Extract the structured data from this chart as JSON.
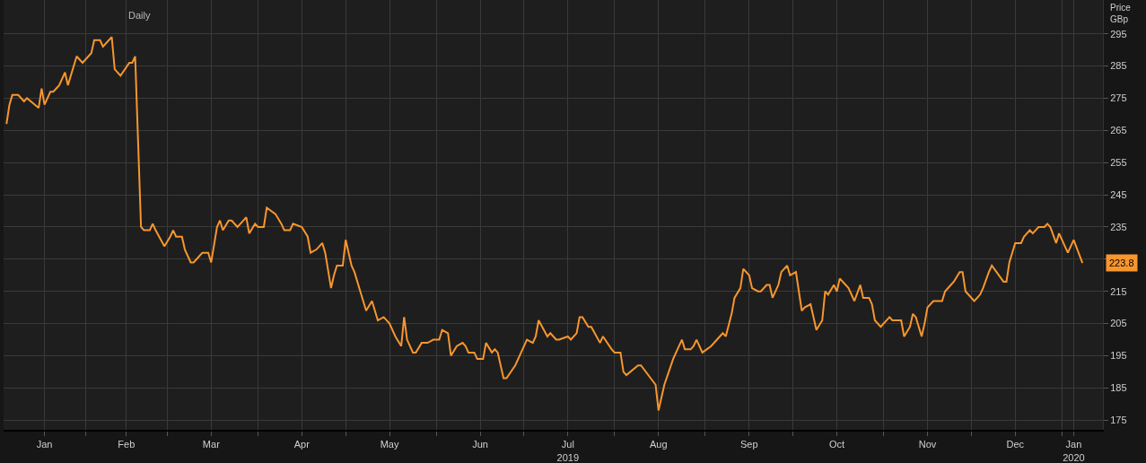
{
  "chart_data": {
    "type": "line",
    "ylabel": "Price\nGBp",
    "color": "#f7962e",
    "line_style": "solid",
    "grid": true,
    "x": [
      "2019-01-05",
      "2019-01-06",
      "2019-01-07",
      "2019-01-09",
      "2019-01-11",
      "2019-01-12",
      "2019-01-16",
      "2019-01-17",
      "2019-01-18",
      "2019-01-20",
      "2019-01-21",
      "2019-01-23",
      "2019-01-25",
      "2019-01-26",
      "2019-01-29",
      "2019-01-31",
      "2019-02-03",
      "2019-02-04",
      "2019-02-06",
      "2019-02-07",
      "2019-02-10",
      "2019-02-11",
      "2019-02-13",
      "2019-02-16",
      "2019-02-17",
      "2019-02-18",
      "2019-02-20",
      "2019-02-21",
      "2019-02-23",
      "2019-02-24",
      "2019-02-25",
      "2019-02-28",
      "2019-03-02",
      "2019-03-03",
      "2019-03-04",
      "2019-03-06",
      "2019-03-07",
      "2019-03-09",
      "2019-03-10",
      "2019-03-12",
      "2019-03-13",
      "2019-03-15",
      "2019-03-16",
      "2019-03-18",
      "2019-03-19",
      "2019-03-20",
      "2019-03-22",
      "2019-03-23",
      "2019-03-25",
      "2019-03-26",
      "2019-03-28",
      "2019-03-29",
      "2019-03-31",
      "2019-04-01",
      "2019-04-03",
      "2019-04-04",
      "2019-04-07",
      "2019-04-09",
      "2019-04-10",
      "2019-04-12",
      "2019-04-13",
      "2019-04-16",
      "2019-04-18",
      "2019-04-19",
      "2019-04-21",
      "2019-04-23",
      "2019-04-24",
      "2019-04-26",
      "2019-04-27",
      "2019-04-28",
      "2019-04-30",
      "2019-05-01",
      "2019-05-03",
      "2019-05-04",
      "2019-05-06",
      "2019-05-08",
      "2019-05-10",
      "2019-05-12",
      "2019-05-14",
      "2019-05-16",
      "2019-05-18",
      "2019-05-20",
      "2019-05-21",
      "2019-05-22",
      "2019-05-24",
      "2019-05-25",
      "2019-05-27",
      "2019-05-29",
      "2019-05-31",
      "2019-06-02",
      "2019-06-03",
      "2019-06-05",
      "2019-06-06",
      "2019-06-08",
      "2019-06-10",
      "2019-06-11",
      "2019-06-12",
      "2019-06-14",
      "2019-06-15",
      "2019-06-17",
      "2019-06-18",
      "2019-06-20",
      "2019-06-21",
      "2019-06-22",
      "2019-06-24",
      "2019-06-25",
      "2019-06-28",
      "2019-06-30",
      "2019-07-01",
      "2019-07-02",
      "2019-07-04",
      "2019-07-05",
      "2019-07-06",
      "2019-07-09",
      "2019-07-10",
      "2019-07-12",
      "2019-07-13",
      "2019-07-16",
      "2019-07-17",
      "2019-07-19",
      "2019-07-20",
      "2019-07-21",
      "2019-07-23",
      "2019-07-24",
      "2019-07-27",
      "2019-07-28",
      "2019-07-31",
      "2019-08-01",
      "2019-08-03",
      "2019-08-04",
      "2019-08-05",
      "2019-08-09",
      "2019-08-10",
      "2019-08-15",
      "2019-08-16",
      "2019-08-18",
      "2019-08-21",
      "2019-08-22",
      "2019-08-24",
      "2019-08-25",
      "2019-08-27",
      "2019-08-28",
      "2019-08-29",
      "2019-08-31",
      "2019-09-03",
      "2019-09-05",
      "2019-09-07",
      "2019-09-08",
      "2019-09-10",
      "2019-09-11",
      "2019-09-13",
      "2019-09-14",
      "2019-09-16",
      "2019-09-17",
      "2019-09-19",
      "2019-09-20",
      "2019-09-22",
      "2019-09-23",
      "2019-09-24",
      "2019-09-26",
      "2019-09-27",
      "2019-09-29",
      "2019-09-30",
      "2019-10-02",
      "2019-10-04",
      "2019-10-05",
      "2019-10-07",
      "2019-10-09",
      "2019-10-11",
      "2019-10-12",
      "2019-10-13",
      "2019-10-15",
      "2019-10-16",
      "2019-10-17",
      "2019-10-19",
      "2019-10-20",
      "2019-10-22",
      "2019-10-24",
      "2019-10-25",
      "2019-10-27",
      "2019-10-28",
      "2019-10-29",
      "2019-10-31",
      "2019-11-03",
      "2019-11-04",
      "2019-11-07",
      "2019-11-08",
      "2019-11-10",
      "2019-11-11",
      "2019-11-12",
      "2019-11-14",
      "2019-11-15",
      "2019-11-16",
      "2019-11-18",
      "2019-11-21",
      "2019-11-22",
      "2019-11-24",
      "2019-11-25",
      "2019-11-27",
      "2019-11-28",
      "2019-11-29",
      "2019-12-02",
      "2019-12-04",
      "2019-12-05",
      "2019-12-07",
      "2019-12-08",
      "2019-12-12",
      "2019-12-13",
      "2019-12-14",
      "2019-12-16",
      "2019-12-18",
      "2019-12-19",
      "2019-12-21",
      "2019-12-22",
      "2019-12-24",
      "2019-12-26",
      "2019-12-27",
      "2019-12-28",
      "2019-12-30",
      "2019-12-31",
      "2020-01-03",
      "2020-01-05",
      "2020-01-08"
    ],
    "values": [
      267,
      273,
      276,
      276,
      274,
      275,
      272,
      278,
      273,
      277,
      277,
      279,
      283,
      279,
      288,
      286,
      289,
      293,
      293,
      291,
      294,
      284,
      282,
      286,
      286,
      288,
      235,
      234,
      234,
      236,
      234,
      229,
      232,
      234,
      232,
      232,
      228,
      224,
      224,
      226,
      227,
      227,
      224,
      235,
      237,
      234,
      237,
      237,
      235,
      236,
      238,
      233,
      236,
      235,
      235,
      241,
      239,
      236,
      234,
      234,
      236,
      235,
      232,
      227,
      228,
      230,
      227,
      216,
      220,
      223,
      223,
      231,
      223,
      221,
      215,
      209,
      212,
      206,
      207,
      205,
      201,
      198,
      207,
      200,
      196,
      196,
      199,
      199,
      200,
      200,
      203,
      202,
      195,
      198,
      199,
      198,
      196,
      196,
      194,
      194,
      199,
      196,
      197,
      196,
      188,
      188,
      192,
      196,
      198,
      200,
      199,
      201,
      206,
      201,
      202,
      200,
      200,
      201,
      200,
      202,
      207,
      207,
      204,
      204,
      199,
      201,
      197,
      196,
      196,
      190,
      189,
      192,
      192,
      186,
      178,
      186,
      194,
      196,
      200,
      197,
      197,
      198,
      200,
      196,
      198,
      200,
      202,
      201,
      208,
      213,
      216,
      222,
      220,
      216,
      215,
      215,
      217,
      217,
      213,
      217,
      221,
      223,
      220,
      221,
      209,
      210,
      211,
      203,
      206,
      215,
      214,
      217,
      215,
      219,
      217,
      216,
      212,
      217,
      213,
      213,
      211,
      206,
      204,
      207,
      206,
      206,
      201,
      204,
      208,
      207,
      201,
      205,
      210,
      212,
      212,
      215,
      217,
      218,
      221,
      221,
      215,
      212,
      214,
      216,
      221,
      223,
      218,
      218,
      224,
      230,
      230,
      232,
      234,
      233,
      235,
      235,
      236,
      235,
      230,
      233,
      227,
      231,
      223.8
    ],
    "xlim": [
      "2019-01-04",
      "2020-01-15"
    ],
    "xticks": [
      {
        "value": "2019-01-18",
        "label": "Jan"
      },
      {
        "value": "2019-02-01",
        "label": null
      },
      {
        "value": "2019-02-15",
        "label": "Feb"
      },
      {
        "value": "2019-03-01",
        "label": null
      },
      {
        "value": "2019-03-16",
        "label": "Mar"
      },
      {
        "value": "2019-04-01",
        "label": null
      },
      {
        "value": "2019-04-16",
        "label": "Apr"
      },
      {
        "value": "2019-05-01",
        "label": null
      },
      {
        "value": "2019-05-16",
        "label": "May"
      },
      {
        "value": "2019-06-01",
        "label": null
      },
      {
        "value": "2019-06-16",
        "label": "Jun"
      },
      {
        "value": "2019-07-01",
        "label": null
      },
      {
        "value": "2019-07-16",
        "label": "Jul\n2019"
      },
      {
        "value": "2019-08-01",
        "label": null
      },
      {
        "value": "2019-08-16",
        "label": "Aug"
      },
      {
        "value": "2019-09-01",
        "label": null
      },
      {
        "value": "2019-09-16",
        "label": "Sep"
      },
      {
        "value": "2019-10-01",
        "label": null
      },
      {
        "value": "2019-10-16",
        "label": "Oct"
      },
      {
        "value": "2019-11-01",
        "label": null
      },
      {
        "value": "2019-11-16",
        "label": "Nov"
      },
      {
        "value": "2019-12-01",
        "label": null
      },
      {
        "value": "2019-12-16",
        "label": "Dec"
      },
      {
        "value": "2020-01-01",
        "label": null
      },
      {
        "value": "2020-01-05",
        "label": "Jan\n2020"
      }
    ],
    "ylim": [
      172,
      305.5
    ],
    "yticks": [
      175,
      185,
      195,
      205,
      215,
      {
        "value": 225,
        "label": null
      },
      235,
      245,
      255,
      265,
      275,
      285,
      295
    ],
    "annotations": [
      {
        "text": "223.8",
        "x": "2020-01-08",
        "y": 223.8
      },
      "Daily"
    ]
  }
}
